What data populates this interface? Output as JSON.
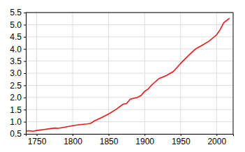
{
  "chart_data": {
    "type": "line",
    "x": [
      1735,
      1740,
      1745,
      1750,
      1760,
      1770,
      1775,
      1780,
      1790,
      1800,
      1810,
      1820,
      1825,
      1830,
      1840,
      1850,
      1860,
      1870,
      1875,
      1880,
      1890,
      1895,
      1900,
      1905,
      1910,
      1920,
      1930,
      1940,
      1950,
      1960,
      1970,
      1975,
      1980,
      1990,
      2000,
      2005,
      2010,
      2018
    ],
    "series": [
      {
        "color": "#e41a1c",
        "values": [
          0.62,
          0.63,
          0.61,
          0.64,
          0.68,
          0.72,
          0.74,
          0.73,
          0.78,
          0.84,
          0.88,
          0.91,
          0.93,
          1.03,
          1.17,
          1.32,
          1.5,
          1.72,
          1.75,
          1.93,
          2.0,
          2.08,
          2.25,
          2.35,
          2.52,
          2.78,
          2.9,
          3.07,
          3.4,
          3.7,
          3.98,
          4.07,
          4.15,
          4.33,
          4.58,
          4.8,
          5.08,
          5.27
        ]
      }
    ],
    "xlim": [
      1735,
      2023
    ],
    "xticks": [
      1750,
      1800,
      1850,
      1900,
      1950,
      2000
    ],
    "ylim": [
      0.5,
      5.5
    ],
    "yticks": [
      0.5,
      {
        "value": 1,
        "label": "1.0"
      },
      1.5,
      {
        "value": 2,
        "label": "2.0"
      },
      2.5,
      {
        "value": 3,
        "label": "3.0"
      },
      3.5,
      {
        "value": 4,
        "label": "4.0"
      },
      4.5,
      {
        "value": 5,
        "label": "5.0"
      },
      5.5
    ],
    "grid": true
  }
}
